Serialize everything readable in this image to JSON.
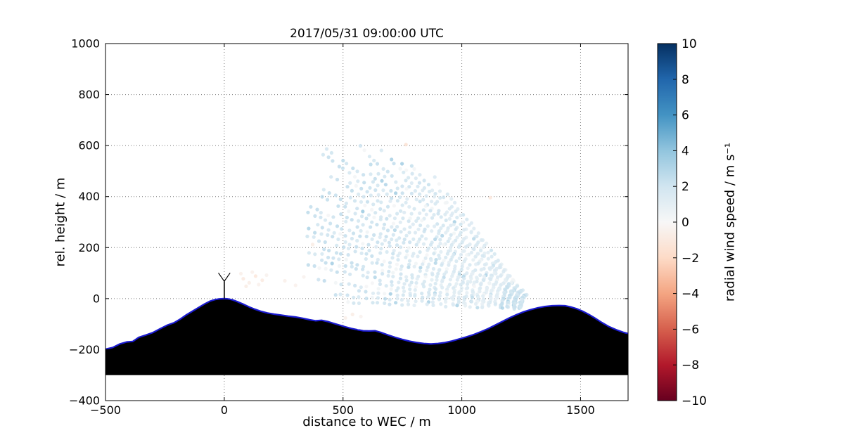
{
  "chart_data": {
    "type": "scatter",
    "title": "2017/05/31 09:00:00 UTC",
    "xlabel": "distance to WEC / m",
    "ylabel": "rel. height / m",
    "xlim": [
      -500,
      1700
    ],
    "ylim": [
      -400,
      1000
    ],
    "xticks": {
      "values": [
        -500,
        0,
        500,
        1000,
        1500
      ],
      "labels": [
        "−500",
        "0",
        "500",
        "1000",
        "1500"
      ]
    },
    "yticks": {
      "values": [
        -400,
        -200,
        0,
        200,
        400,
        600,
        800,
        1000
      ],
      "labels": [
        "−400",
        "−200",
        "0",
        "200",
        "400",
        "600",
        "800",
        "1000"
      ]
    },
    "grid": {
      "on": true,
      "style": "dotted",
      "color": "#777777"
    },
    "colorbar": {
      "label": "radial wind speed / m s⁻¹",
      "vmin": -10,
      "vmax": 10,
      "ticks": {
        "values": [
          10,
          8,
          6,
          4,
          2,
          0,
          -2,
          -4,
          -6,
          -8,
          -10
        ],
        "labels": [
          "10",
          "8",
          "6",
          "4",
          "2",
          "0",
          "−2",
          "−4",
          "−6",
          "−8",
          "−10"
        ]
      },
      "colormap": "RdBu",
      "stops": [
        {
          "v": -10,
          "c": "#67001f"
        },
        {
          "v": -8,
          "c": "#b2182b"
        },
        {
          "v": -6,
          "c": "#d6604d"
        },
        {
          "v": -4,
          "c": "#f4a582"
        },
        {
          "v": -2,
          "c": "#fddbc7"
        },
        {
          "v": 0,
          "c": "#f7f7f7"
        },
        {
          "v": 2,
          "c": "#d1e5f0"
        },
        {
          "v": 4,
          "c": "#92c5de"
        },
        {
          "v": 6,
          "c": "#4393c3"
        },
        {
          "v": 8,
          "c": "#2166ac"
        },
        {
          "v": 10,
          "c": "#053061"
        }
      ]
    },
    "terrain": {
      "fill_color": "#000000",
      "line_color": "#1b1bd0",
      "base": -300,
      "profile": [
        [
          -500,
          -198
        ],
        [
          -470,
          -192
        ],
        [
          -440,
          -178
        ],
        [
          -410,
          -170
        ],
        [
          -385,
          -168
        ],
        [
          -360,
          -152
        ],
        [
          -330,
          -143
        ],
        [
          -300,
          -133
        ],
        [
          -270,
          -118
        ],
        [
          -240,
          -104
        ],
        [
          -210,
          -94
        ],
        [
          -185,
          -80
        ],
        [
          -160,
          -64
        ],
        [
          -135,
          -50
        ],
        [
          -110,
          -36
        ],
        [
          -85,
          -22
        ],
        [
          -60,
          -10
        ],
        [
          -40,
          -4
        ],
        [
          -20,
          -1
        ],
        [
          0,
          0
        ],
        [
          15,
          -1
        ],
        [
          35,
          -5
        ],
        [
          55,
          -12
        ],
        [
          80,
          -22
        ],
        [
          105,
          -33
        ],
        [
          130,
          -42
        ],
        [
          155,
          -50
        ],
        [
          180,
          -56
        ],
        [
          210,
          -61
        ],
        [
          240,
          -65
        ],
        [
          270,
          -69
        ],
        [
          300,
          -72
        ],
        [
          330,
          -77
        ],
        [
          360,
          -83
        ],
        [
          385,
          -87
        ],
        [
          410,
          -85
        ],
        [
          435,
          -90
        ],
        [
          460,
          -97
        ],
        [
          485,
          -104
        ],
        [
          510,
          -111
        ],
        [
          535,
          -117
        ],
        [
          560,
          -122
        ],
        [
          585,
          -126
        ],
        [
          610,
          -127
        ],
        [
          635,
          -126
        ],
        [
          660,
          -133
        ],
        [
          690,
          -143
        ],
        [
          720,
          -152
        ],
        [
          750,
          -160
        ],
        [
          780,
          -167
        ],
        [
          810,
          -172
        ],
        [
          840,
          -176
        ],
        [
          870,
          -178
        ],
        [
          900,
          -176
        ],
        [
          930,
          -172
        ],
        [
          960,
          -166
        ],
        [
          990,
          -158
        ],
        [
          1020,
          -150
        ],
        [
          1050,
          -141
        ],
        [
          1080,
          -130
        ],
        [
          1110,
          -118
        ],
        [
          1140,
          -104
        ],
        [
          1170,
          -90
        ],
        [
          1200,
          -76
        ],
        [
          1230,
          -63
        ],
        [
          1260,
          -52
        ],
        [
          1290,
          -43
        ],
        [
          1320,
          -36
        ],
        [
          1350,
          -31
        ],
        [
          1380,
          -28
        ],
        [
          1410,
          -27
        ],
        [
          1435,
          -28
        ],
        [
          1460,
          -33
        ],
        [
          1485,
          -40
        ],
        [
          1510,
          -50
        ],
        [
          1535,
          -62
        ],
        [
          1560,
          -76
        ],
        [
          1590,
          -94
        ],
        [
          1620,
          -110
        ],
        [
          1650,
          -122
        ],
        [
          1680,
          -132
        ],
        [
          1700,
          -137
        ]
      ]
    },
    "turbine": {
      "x": 0,
      "base_height": 0,
      "hub_height": 68,
      "rotor_radius": 40
    },
    "scan": {
      "description": "lidar RHI scan fan of radial wind speed, mostly +1 to +4 m/s (light blue)",
      "origin": [
        1315,
        -40
      ],
      "angle_min_deg": 130,
      "angle_max_deg": 178,
      "angle_step_deg": 1.6,
      "range_min": 70,
      "range_max": 1200,
      "range_step": 26,
      "x_clip_min": 345,
      "x_clip_max": 1360,
      "y_clip_max": 615,
      "value_typical": [
        0.5,
        4.0
      ],
      "seed": 42
    },
    "extra_points": [
      {
        "x": 765,
        "y": 604,
        "v": -1.6
      },
      {
        "x": 80,
        "y": 78,
        "v": -1.0
      },
      {
        "x": 105,
        "y": 62,
        "v": -0.7
      },
      {
        "x": 132,
        "y": 88,
        "v": -1.2
      },
      {
        "x": 70,
        "y": 98,
        "v": -0.6
      },
      {
        "x": 160,
        "y": 72,
        "v": -0.9
      },
      {
        "x": 118,
        "y": 104,
        "v": -0.5
      },
      {
        "x": 92,
        "y": 48,
        "v": -0.8
      },
      {
        "x": 145,
        "y": 55,
        "v": -0.5
      },
      {
        "x": 178,
        "y": 92,
        "v": -0.4
      },
      {
        "x": 255,
        "y": 70,
        "v": -0.6
      },
      {
        "x": 300,
        "y": 52,
        "v": -0.5
      },
      {
        "x": 335,
        "y": 85,
        "v": -0.4
      },
      {
        "x": 372,
        "y": 212,
        "v": -0.8
      },
      {
        "x": 1120,
        "y": 396,
        "v": -1.2
      },
      {
        "x": 540,
        "y": -62,
        "v": -0.8
      },
      {
        "x": 510,
        "y": -76,
        "v": -0.6
      },
      {
        "x": 575,
        "y": -70,
        "v": -0.4
      }
    ]
  }
}
